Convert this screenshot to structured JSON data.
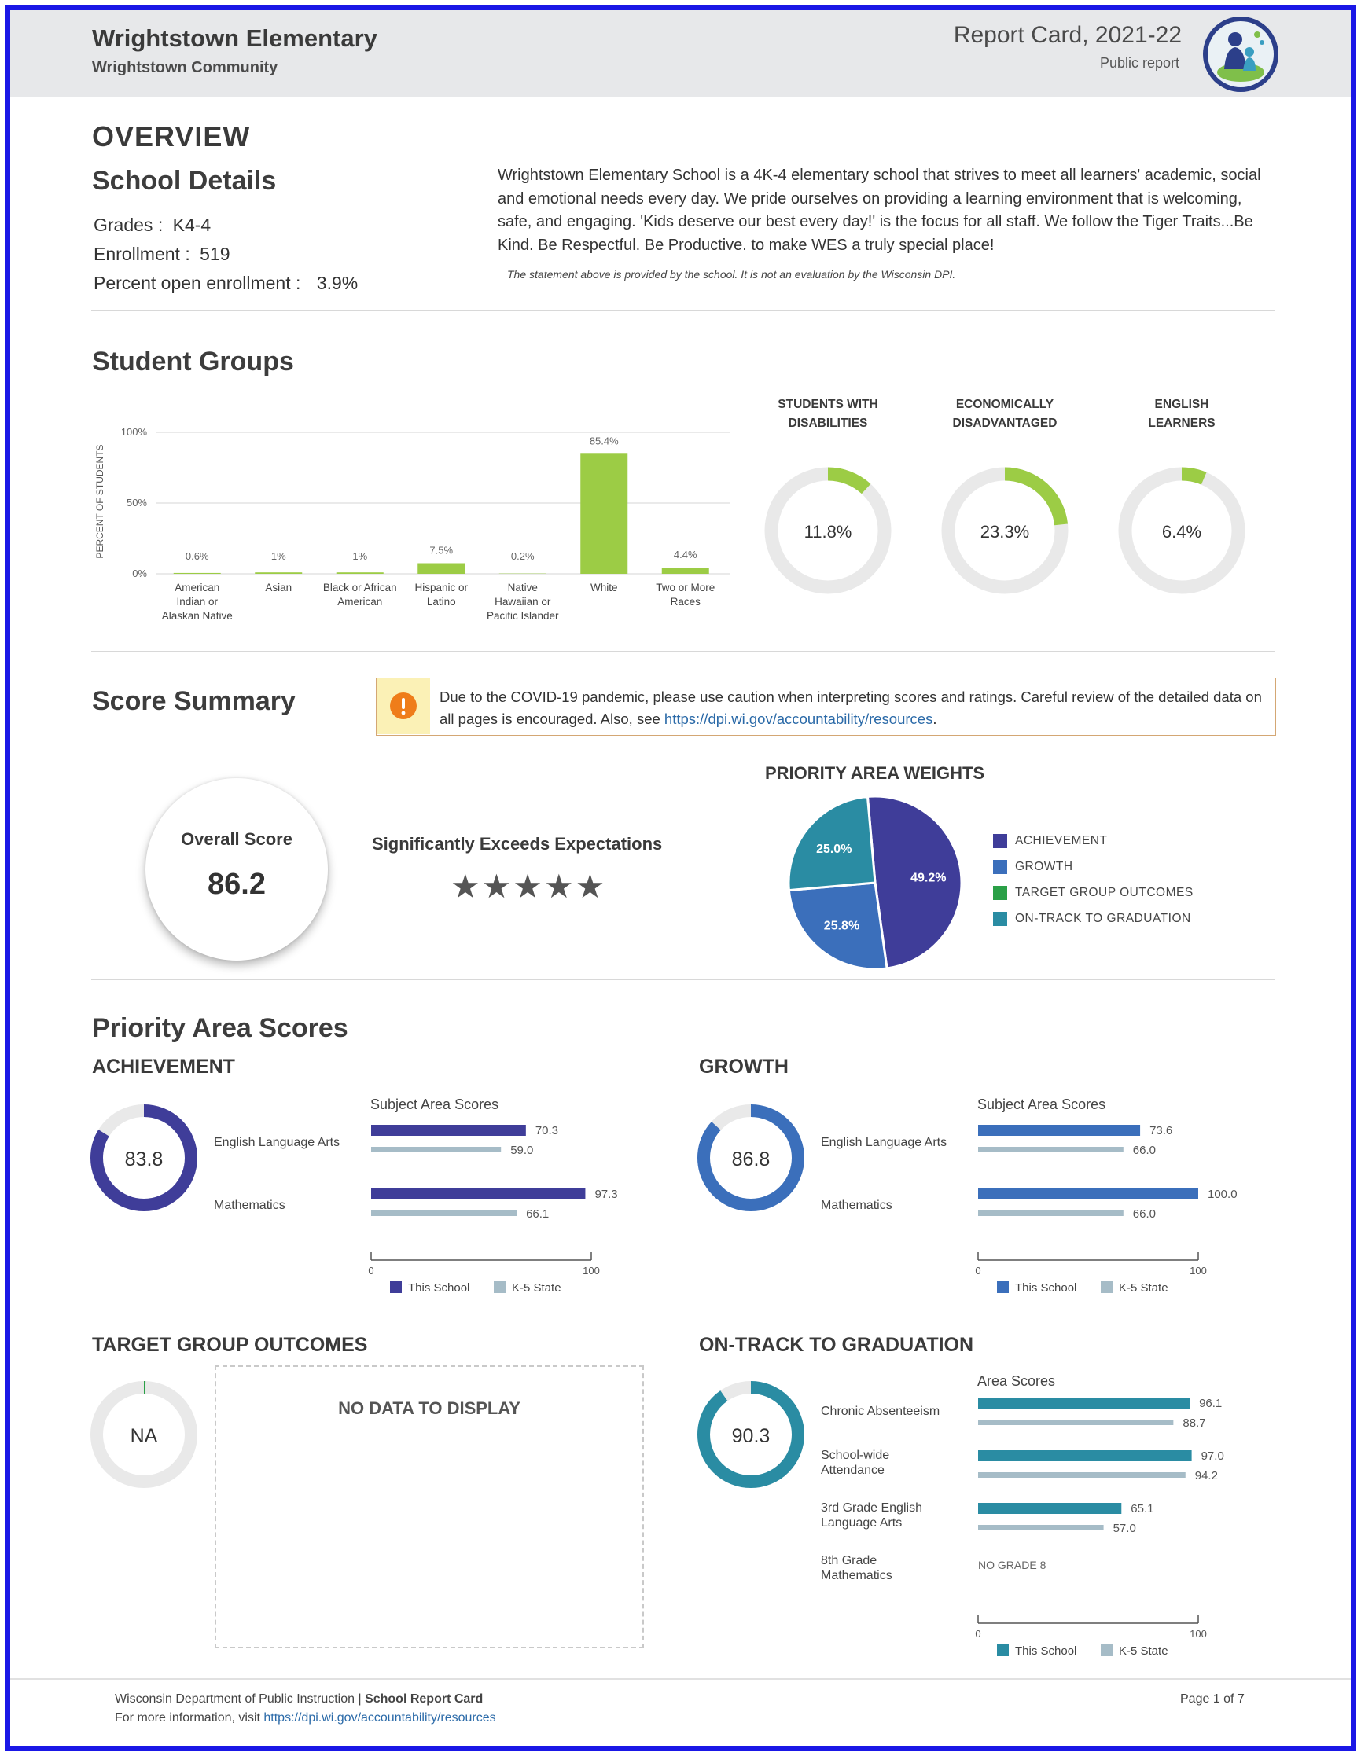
{
  "header": {
    "school_name": "Wrightstown Elementary",
    "district": "Wrightstown Community",
    "report_title": "Report Card, 2021-22",
    "report_type": "Public report"
  },
  "overview": {
    "heading": "OVERVIEW",
    "details_heading": "School Details",
    "grades_label": "Grades :",
    "grades_value": "K4-4",
    "enrollment_label": "Enrollment :",
    "enrollment_value": "519",
    "open_label": "Percent open enrollment :",
    "open_value": "3.9%",
    "statement": "Wrightstown Elementary School is a 4K-4 elementary school that strives to meet all learners' academic, social and emotional needs every day. We pride ourselves on providing a learning environment that is welcoming, safe, and engaging. 'Kids deserve our best every day!' is the focus for all staff. We follow the Tiger Traits...Be Kind. Be Respectful. Be Productive. to make WES a truly special place!",
    "disclaimer": "The statement above is provided by the school. It is not an evaluation by the Wisconsin DPI."
  },
  "student_groups": {
    "heading": "Student Groups",
    "donuts": [
      {
        "label1": "STUDENTS WITH",
        "label2": "DISABILITIES",
        "text": "11.8%",
        "value": 11.8
      },
      {
        "label1": "ECONOMICALLY",
        "label2": "DISADVANTAGED",
        "text": "23.3%",
        "value": 23.3
      },
      {
        "label1": "ENGLISH",
        "label2": "LEARNERS",
        "text": "6.4%",
        "value": 6.4
      }
    ]
  },
  "score_summary": {
    "heading": "Score Summary",
    "covid_notice_text": "Due to the COVID-19 pandemic, please use caution when interpreting scores and ratings. Careful review of the detailed data on all pages is encouraged. Also, see ",
    "covid_link": "https://dpi.wi.gov/accountability/resources",
    "covid_end": ".",
    "overall_label": "Overall Score",
    "overall_value": "86.2",
    "rating": "Significantly Exceeds Expectations",
    "stars": "★★★★★",
    "stars_count": 5,
    "weights_title": "PRIORITY AREA WEIGHTS"
  },
  "priority": {
    "heading": "Priority Area Scores",
    "subject_scores_label": "Subject Area Scores",
    "area_scores_label": "Area Scores",
    "legend_school": "This School",
    "legend_state": "K-5 State",
    "axis_min": "0",
    "axis_max": "100",
    "achievement": {
      "title": "ACHIEVEMENT",
      "score": "83.8",
      "score_value": 83.8,
      "ela_label": "English Language Arts",
      "math_label": "Mathematics"
    },
    "growth": {
      "title": "GROWTH",
      "score": "86.8",
      "score_value": 86.8,
      "ela_label": "English Language Arts",
      "math_label": "Mathematics"
    },
    "target": {
      "title": "TARGET GROUP OUTCOMES",
      "score": "NA",
      "no_data": "NO DATA TO DISPLAY"
    },
    "ontrack": {
      "title": "ON-TRACK TO GRADUATION",
      "score": "90.3",
      "score_value": 90.3,
      "labels": [
        "Chronic Absenteeism",
        "School-wide",
        "Attendance",
        "3rd Grade English",
        "Language Arts",
        "8th Grade",
        "Mathematics"
      ],
      "no_grade": "NO GRADE 8"
    }
  },
  "footer": {
    "org": "Wisconsin Department of Public Instruction | ",
    "org_bold": "School Report Card",
    "info": "For more information, visit ",
    "link": "https://dpi.wi.gov/accountability/resources",
    "page": "Page 1 of 7"
  },
  "colors": {
    "achievement": "#3f3d99",
    "growth": "#3b6fbb",
    "target": "#2aa047",
    "ontrack": "#2a8ca3",
    "green": "#9ccc45",
    "state": "#a6bcc7",
    "ring_bg": "#e9e9e9"
  },
  "chart_data": [
    {
      "type": "bar",
      "title": "",
      "ylabel": "PERCENT OF STUDENTS",
      "ylim": [
        0,
        100
      ],
      "yticks": [
        "0%",
        "50%",
        "100%"
      ],
      "categories": [
        "American Indian or Alaskan Native",
        "Asian",
        "Black or African American",
        "Hispanic or Latino",
        "Native Hawaiian or Pacific Islander",
        "White",
        "Two or More Races"
      ],
      "category_lines": [
        [
          "American",
          "Indian or",
          "Alaskan Native"
        ],
        [
          "Asian"
        ],
        [
          "Black or African",
          "American"
        ],
        [
          "Hispanic or",
          "Latino"
        ],
        [
          "Native",
          "Hawaiian or",
          "Pacific Islander"
        ],
        [
          "White"
        ],
        [
          "Two or More",
          "Races"
        ]
      ],
      "values": [
        0.6,
        1,
        1,
        7.5,
        0.2,
        85.4,
        4.4
      ],
      "value_labels": [
        "0.6%",
        "1%",
        "1%",
        "7.5%",
        "0.2%",
        "85.4%",
        "4.4%"
      ]
    },
    {
      "type": "pie",
      "title": "PRIORITY AREA WEIGHTS",
      "slices": [
        {
          "name": "ACHIEVEMENT",
          "value": 49.2,
          "label": "49.2%"
        },
        {
          "name": "GROWTH",
          "value": 25.8,
          "label": "25.8%"
        },
        {
          "name": "TARGET GROUP OUTCOMES",
          "value": 0,
          "label": ""
        },
        {
          "name": "ON-TRACK TO GRADUATION",
          "value": 25.0,
          "label": "25.0%"
        }
      ],
      "legend_position": "right"
    },
    {
      "type": "bar",
      "title": "Subject Area Scores",
      "group": "ACHIEVEMENT",
      "categories": [
        "English Language Arts",
        "Mathematics"
      ],
      "series": [
        {
          "name": "This School",
          "values": [
            70.3,
            97.3
          ]
        },
        {
          "name": "K-5 State",
          "values": [
            59.0,
            66.1
          ]
        }
      ],
      "labels_school": [
        "70.3",
        "97.3"
      ],
      "labels_state": [
        "59.0",
        "66.1"
      ],
      "xlim": [
        0,
        100
      ]
    },
    {
      "type": "bar",
      "title": "Subject Area Scores",
      "group": "GROWTH",
      "categories": [
        "English Language Arts",
        "Mathematics"
      ],
      "series": [
        {
          "name": "This School",
          "values": [
            73.6,
            100.0
          ]
        },
        {
          "name": "K-5 State",
          "values": [
            66.0,
            66.0
          ]
        }
      ],
      "labels_school": [
        "73.6",
        "100.0"
      ],
      "labels_state": [
        "66.0",
        "66.0"
      ],
      "xlim": [
        0,
        100
      ]
    },
    {
      "type": "bar",
      "title": "Area Scores",
      "group": "ON-TRACK TO GRADUATION",
      "categories": [
        "Chronic Absenteeism",
        "School-wide Attendance",
        "3rd Grade English Language Arts",
        "8th Grade Mathematics"
      ],
      "series": [
        {
          "name": "This School",
          "values": [
            96.1,
            97.0,
            65.1,
            null
          ]
        },
        {
          "name": "K-5 State",
          "values": [
            88.7,
            94.2,
            57.0,
            null
          ]
        }
      ],
      "labels_school": [
        "96.1",
        "97.0",
        "65.1"
      ],
      "labels_state": [
        "88.7",
        "94.2",
        "57.0"
      ],
      "xlim": [
        0,
        100
      ]
    }
  ]
}
